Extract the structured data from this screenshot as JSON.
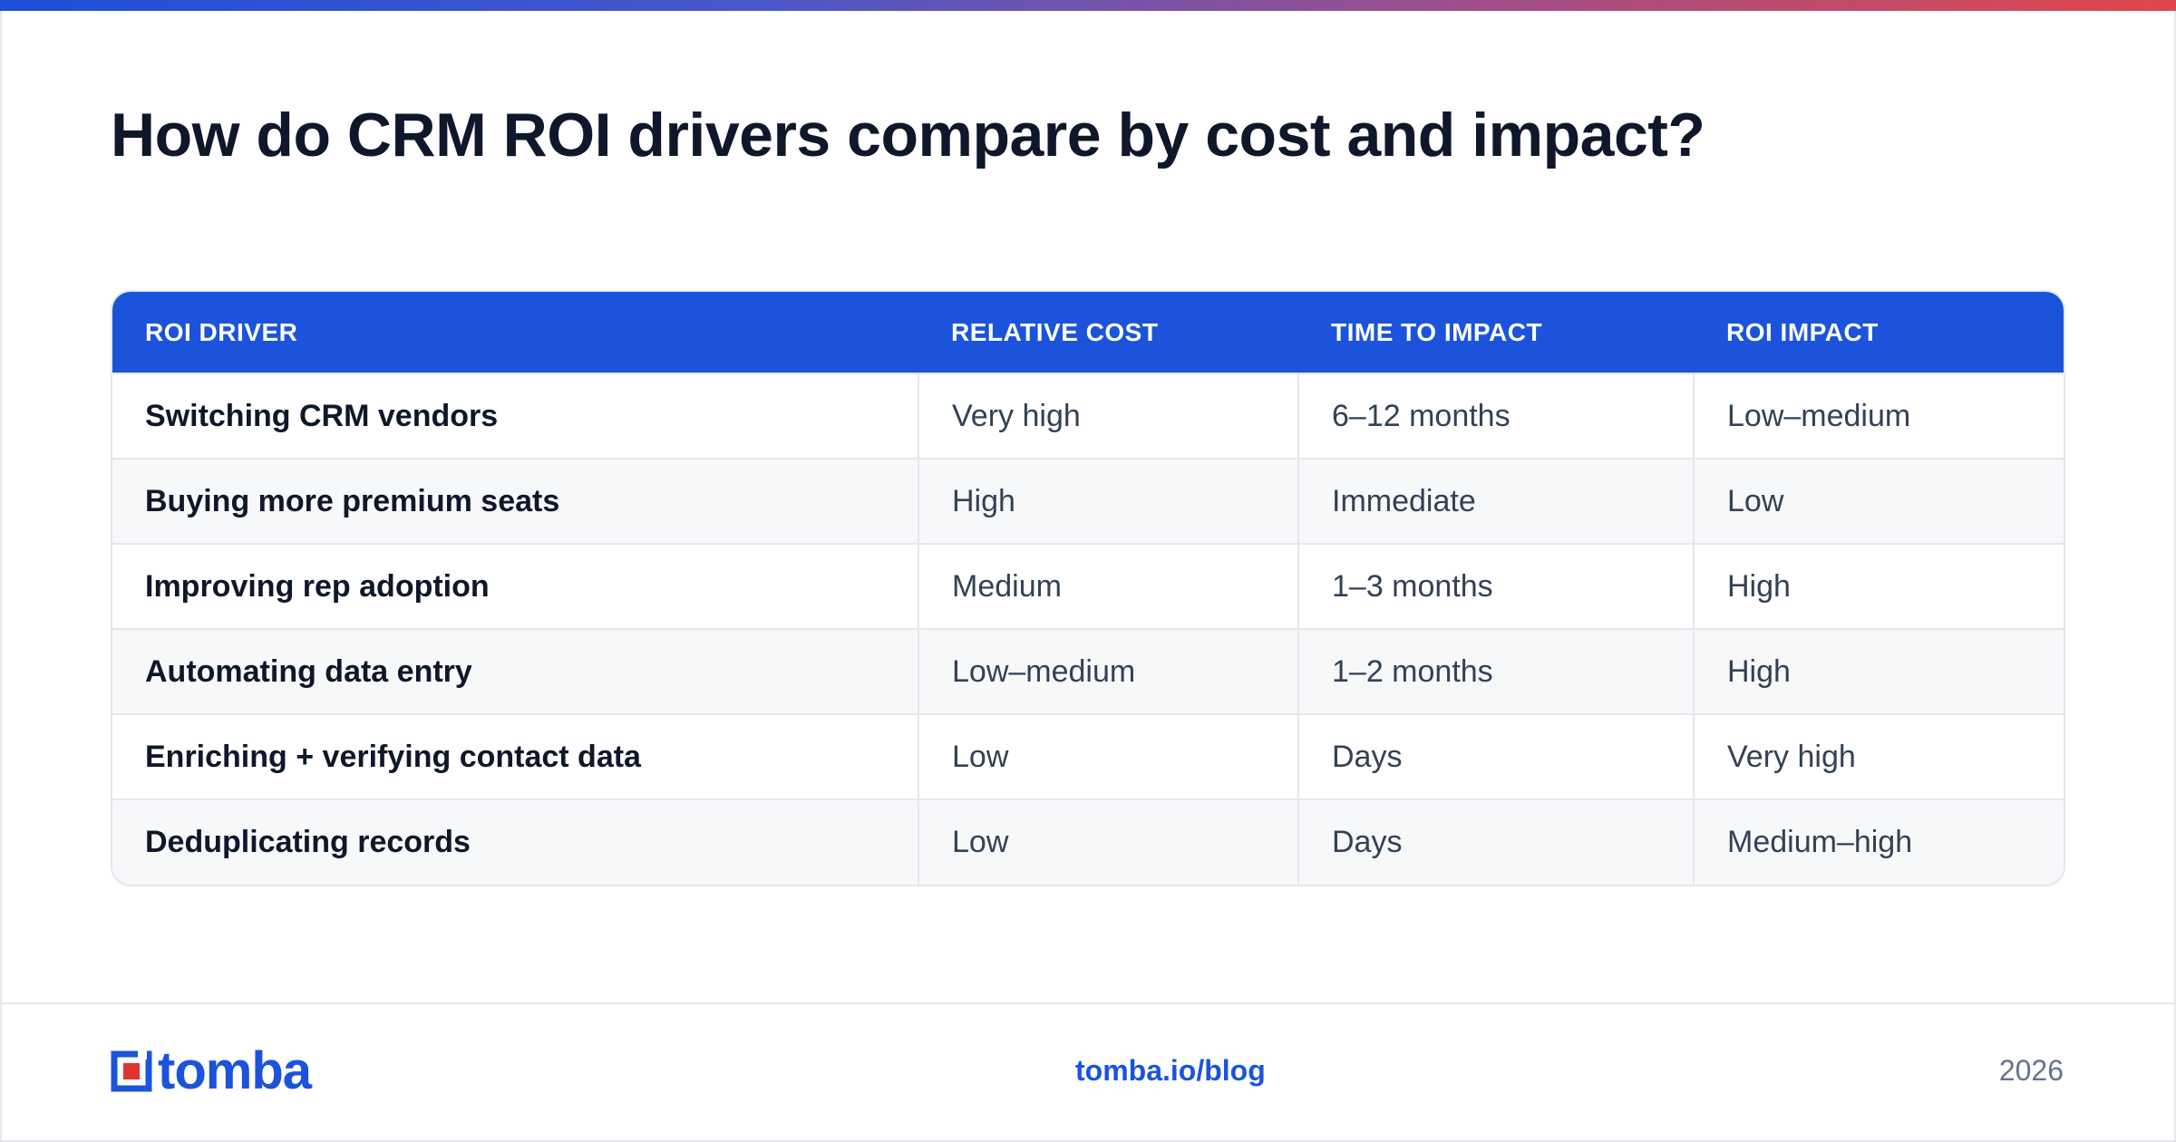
{
  "title": "How do CRM ROI drivers compare by cost and impact?",
  "table": {
    "headers": [
      "ROI DRIVER",
      "RELATIVE COST",
      "TIME TO IMPACT",
      "ROI IMPACT"
    ],
    "rows": [
      [
        "Switching CRM vendors",
        "Very high",
        "6–12 months",
        "Low–medium"
      ],
      [
        "Buying more premium seats",
        "High",
        "Immediate",
        "Low"
      ],
      [
        "Improving rep adoption",
        "Medium",
        "1–3 months",
        "High"
      ],
      [
        "Automating data entry",
        "Low–medium",
        "1–2 months",
        "High"
      ],
      [
        "Enriching + verifying contact data",
        "Low",
        "Days",
        "Very high"
      ],
      [
        "Deduplicating records",
        "Low",
        "Days",
        "Medium–high"
      ]
    ]
  },
  "footer": {
    "logo_text": "tomba",
    "logo_icon": "tomba-logo-icon",
    "link": "tomba.io/blog",
    "year": "2026"
  },
  "colors": {
    "accent": "#1b54da",
    "gradient_start": "#1d4fd8",
    "gradient_end": "#e0474c"
  }
}
